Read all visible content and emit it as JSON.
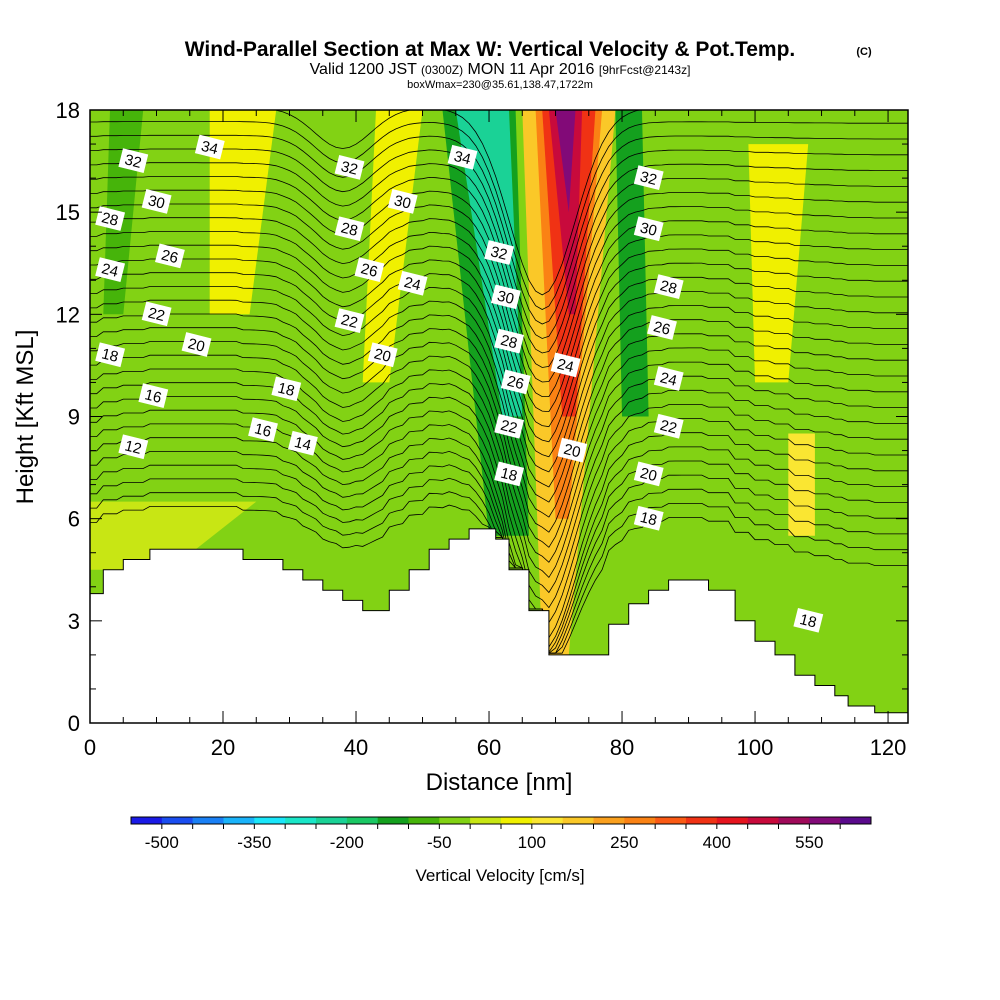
{
  "header": {
    "title": "Wind-Parallel Section at Max W: Vertical Velocity & Pot.Temp.",
    "copyright": "(C)",
    "valid_a": "Valid 1200 JST",
    "valid_b": "(0300Z)",
    "valid_c": "MON 11 Apr 2016",
    "valid_d": "[9hrFcst@2143z]",
    "box": "boxWmax=230@35.61,138.47,1722m"
  },
  "chart_data": {
    "type": "heatmap",
    "title": "Wind-Parallel Section at Max W: Vertical Velocity & Pot.Temp.",
    "xlabel": "Distance [nm]",
    "ylabel": "Height [Kft MSL]",
    "xlim": [
      0,
      123
    ],
    "ylim": [
      0,
      18
    ],
    "x_ticks": [
      0,
      20,
      40,
      60,
      80,
      100,
      120
    ],
    "y_ticks": [
      0,
      3,
      6,
      9,
      12,
      15,
      18
    ],
    "colorbar": {
      "label": "Vertical Velocity [cm/s]",
      "tick_labels": [
        "-500",
        "-350",
        "-200",
        "-50",
        "100",
        "250",
        "400",
        "550"
      ],
      "tick_values": [
        -500,
        -350,
        -200,
        -50,
        100,
        250,
        400,
        550
      ],
      "levels": [
        -500,
        -450,
        -400,
        -350,
        -300,
        -250,
        -200,
        -150,
        -100,
        -50,
        0,
        50,
        100,
        150,
        200,
        250,
        300,
        350,
        400,
        450,
        500,
        550,
        600
      ],
      "colors": [
        "#1a1ae6",
        "#1a4df0",
        "#1a80f5",
        "#1ab3fa",
        "#1ae6fa",
        "#1ae6c8",
        "#1ad296",
        "#1ac864",
        "#14a01e",
        "#46b40a",
        "#82d214",
        "#c8e614",
        "#f0f000",
        "#fae632",
        "#fac828",
        "#faa01e",
        "#fa8214",
        "#fa5a14",
        "#f03214",
        "#e6141e",
        "#c80a3c",
        "#a00a5a",
        "#820a78",
        "#5a0a8c"
      ]
    },
    "terrain": [
      [
        0,
        3.8
      ],
      [
        2,
        3.8
      ],
      [
        2,
        4.5
      ],
      [
        5,
        4.5
      ],
      [
        5,
        4.8
      ],
      [
        9,
        4.8
      ],
      [
        9,
        5.1
      ],
      [
        23,
        5.1
      ],
      [
        23,
        4.8
      ],
      [
        29,
        4.8
      ],
      [
        29,
        4.5
      ],
      [
        32,
        4.5
      ],
      [
        32,
        4.2
      ],
      [
        35,
        4.2
      ],
      [
        35,
        3.9
      ],
      [
        38,
        3.9
      ],
      [
        38,
        3.6
      ],
      [
        41,
        3.6
      ],
      [
        41,
        3.3
      ],
      [
        45,
        3.3
      ],
      [
        45,
        3.9
      ],
      [
        48,
        3.9
      ],
      [
        48,
        4.5
      ],
      [
        51,
        4.5
      ],
      [
        51,
        5.1
      ],
      [
        54,
        5.1
      ],
      [
        54,
        5.4
      ],
      [
        57,
        5.4
      ],
      [
        57,
        5.7
      ],
      [
        61,
        5.7
      ],
      [
        61,
        5.4
      ],
      [
        63,
        5.4
      ],
      [
        63,
        4.5
      ],
      [
        66,
        4.5
      ],
      [
        66,
        3.3
      ],
      [
        69,
        3.3
      ],
      [
        69,
        2.0
      ],
      [
        78,
        2.0
      ],
      [
        78,
        2.9
      ],
      [
        81,
        2.9
      ],
      [
        81,
        3.5
      ],
      [
        84,
        3.5
      ],
      [
        84,
        3.9
      ],
      [
        87,
        3.9
      ],
      [
        87,
        4.2
      ],
      [
        93,
        4.2
      ],
      [
        93,
        3.9
      ],
      [
        97,
        3.9
      ],
      [
        97,
        3.0
      ],
      [
        100,
        3.0
      ],
      [
        100,
        2.4
      ],
      [
        103,
        2.4
      ],
      [
        103,
        2.0
      ],
      [
        106,
        2.0
      ],
      [
        106,
        1.4
      ],
      [
        109,
        1.4
      ],
      [
        109,
        1.1
      ],
      [
        112,
        1.1
      ],
      [
        112,
        0.8
      ],
      [
        114,
        0.8
      ],
      [
        114,
        0.5
      ],
      [
        118,
        0.5
      ],
      [
        118,
        0.3
      ],
      [
        123,
        0.3
      ]
    ],
    "velocity_bands": [
      {
        "value": -30,
        "x_top": [
          0,
          123
        ],
        "x_bot": [
          0,
          123
        ],
        "y": [
          0,
          18
        ]
      },
      {
        "value": 60,
        "x_top": [
          18,
          28
        ],
        "x_bot": [
          18,
          24
        ],
        "y": [
          12,
          18
        ]
      },
      {
        "value": 60,
        "x_top": [
          43,
          50
        ],
        "x_bot": [
          41,
          45
        ],
        "y": [
          10,
          18
        ]
      },
      {
        "value": 60,
        "x_top": [
          99,
          108
        ],
        "x_bot": [
          100,
          105
        ],
        "y": [
          10,
          17
        ]
      },
      {
        "value": 110,
        "x_top": [
          105,
          109
        ],
        "x_bot": [
          105,
          109
        ],
        "y": [
          5.5,
          8.5
        ]
      },
      {
        "value": 40,
        "x_top": [
          0,
          25
        ],
        "x_bot": [
          0,
          12
        ],
        "y": [
          4.5,
          6.5
        ]
      },
      {
        "value": -120,
        "x_top": [
          53,
          64
        ],
        "x_bot": [
          60,
          66
        ],
        "y": [
          5.5,
          18
        ]
      },
      {
        "value": -220,
        "x_top": [
          55,
          63
        ],
        "x_bot": [
          62,
          65
        ],
        "y": [
          9,
          18
        ]
      },
      {
        "value": -150,
        "x_top": [
          79,
          83
        ],
        "x_bot": [
          80,
          84
        ],
        "y": [
          9,
          18
        ]
      },
      {
        "value": -80,
        "x_top": [
          3,
          8
        ],
        "x_bot": [
          2,
          5
        ],
        "y": [
          12,
          18
        ]
      },
      {
        "value": 150,
        "x_top": [
          65,
          79
        ],
        "x_bot": [
          68,
          72
        ],
        "y": [
          2,
          18
        ]
      },
      {
        "value": 250,
        "x_top": [
          67,
          77
        ],
        "x_bot": [
          70,
          72
        ],
        "y": [
          6,
          18
        ]
      },
      {
        "value": 350,
        "x_top": [
          68,
          76
        ],
        "x_bot": [
          71,
          73
        ],
        "y": [
          9,
          18
        ]
      },
      {
        "value": 450,
        "x_top": [
          69,
          74
        ],
        "x_bot": [
          72,
          73
        ],
        "y": [
          12,
          18
        ]
      },
      {
        "value": 550,
        "x_top": [
          70,
          73
        ],
        "x_bot": [
          72,
          72
        ],
        "y": [
          15,
          18
        ]
      }
    ],
    "contour_labels": [
      {
        "text": "34",
        "x": 18,
        "y": 16.9
      },
      {
        "text": "32",
        "x": 6.5,
        "y": 16.5
      },
      {
        "text": "30",
        "x": 10,
        "y": 15.3
      },
      {
        "text": "28",
        "x": 3,
        "y": 14.8
      },
      {
        "text": "26",
        "x": 12,
        "y": 13.7
      },
      {
        "text": "24",
        "x": 3,
        "y": 13.3
      },
      {
        "text": "22",
        "x": 10,
        "y": 12.0
      },
      {
        "text": "20",
        "x": 16,
        "y": 11.1
      },
      {
        "text": "18",
        "x": 3,
        "y": 10.8
      },
      {
        "text": "16",
        "x": 9.5,
        "y": 9.6
      },
      {
        "text": "12",
        "x": 6.5,
        "y": 8.1
      },
      {
        "text": "32",
        "x": 39,
        "y": 16.3
      },
      {
        "text": "28",
        "x": 39,
        "y": 14.5
      },
      {
        "text": "26",
        "x": 42,
        "y": 13.3
      },
      {
        "text": "22",
        "x": 39,
        "y": 11.8
      },
      {
        "text": "20",
        "x": 44,
        "y": 10.8
      },
      {
        "text": "30",
        "x": 47,
        "y": 15.3
      },
      {
        "text": "24",
        "x": 48.5,
        "y": 12.9
      },
      {
        "text": "18",
        "x": 29.5,
        "y": 9.8
      },
      {
        "text": "16",
        "x": 26,
        "y": 8.6
      },
      {
        "text": "14",
        "x": 32,
        "y": 8.2
      },
      {
        "text": "34",
        "x": 56,
        "y": 16.6
      },
      {
        "text": "32",
        "x": 61.5,
        "y": 13.8
      },
      {
        "text": "30",
        "x": 62.5,
        "y": 12.5
      },
      {
        "text": "28",
        "x": 63,
        "y": 11.2
      },
      {
        "text": "26",
        "x": 64,
        "y": 10.0
      },
      {
        "text": "22",
        "x": 63,
        "y": 8.7
      },
      {
        "text": "18",
        "x": 63,
        "y": 7.3
      },
      {
        "text": "24",
        "x": 71.5,
        "y": 10.5
      },
      {
        "text": "20",
        "x": 72.5,
        "y": 8.0
      },
      {
        "text": "32",
        "x": 84,
        "y": 16.0
      },
      {
        "text": "30",
        "x": 84,
        "y": 14.5
      },
      {
        "text": "28",
        "x": 87,
        "y": 12.8
      },
      {
        "text": "26",
        "x": 86,
        "y": 11.6
      },
      {
        "text": "24",
        "x": 87,
        "y": 10.1
      },
      {
        "text": "22",
        "x": 87,
        "y": 8.7
      },
      {
        "text": "20",
        "x": 84,
        "y": 7.3
      },
      {
        "text": "18",
        "x": 84,
        "y": 6.0
      },
      {
        "text": "18",
        "x": 108,
        "y": 3.0
      }
    ]
  }
}
